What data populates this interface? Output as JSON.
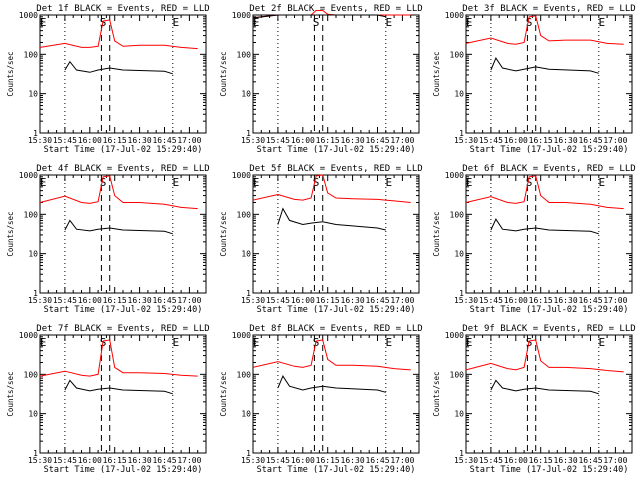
{
  "chart_data": {
    "type": "line",
    "grid": false,
    "xlabel": "Start Time (17-Jul-02 15:29:40)",
    "ylabel": "Counts/sec",
    "yscale": "log",
    "ylim": [
      1,
      1000
    ],
    "xlim_minutes": [
      0,
      100
    ],
    "xtick_labels": [
      "15:30",
      "15:45",
      "16:00",
      "16:15",
      "16:30",
      "16:45",
      "17:00"
    ],
    "ytick_labels": [
      "1",
      "10",
      "100",
      "1000"
    ],
    "colors": {
      "events": "#000000",
      "lld": "#ff0000"
    },
    "markers": {
      "dotted": [
        "15:45",
        "16:50"
      ],
      "dashed": [
        "16:07",
        "16:12"
      ],
      "flags": [
        {
          "time": "15:30",
          "label": "E"
        },
        {
          "time": "16:08",
          "label": "S"
        },
        {
          "time": "16:50",
          "label": "E"
        }
      ]
    },
    "panels": [
      {
        "title": "Det 1f BLACK = Events, RED = LLD",
        "series": [
          {
            "name": "RED = LLD",
            "points": [
              [
                "15:30",
                150
              ],
              [
                "15:45",
                190
              ],
              [
                "15:55",
                150
              ],
              [
                "16:00",
                150
              ],
              [
                "16:05",
                160
              ],
              [
                "16:08",
                700
              ],
              [
                "16:12",
                750
              ],
              [
                "16:15",
                220
              ],
              [
                "16:20",
                160
              ],
              [
                "16:30",
                170
              ],
              [
                "16:45",
                170
              ],
              [
                "16:55",
                150
              ],
              [
                "17:05",
                140
              ]
            ]
          },
          {
            "name": "BLACK = Events",
            "points": [
              [
                "15:45",
                40
              ],
              [
                "15:48",
                65
              ],
              [
                "15:52",
                40
              ],
              [
                "16:00",
                35
              ],
              [
                "16:05",
                40
              ],
              [
                "16:12",
                45
              ],
              [
                "16:20",
                40
              ],
              [
                "16:45",
                37
              ],
              [
                "16:50",
                32
              ]
            ]
          }
        ]
      },
      {
        "title": "Det 2f BLACK = Events, RED = LLD",
        "series": [
          {
            "name": "RED = LLD",
            "points": [
              [
                "15:30",
                850
              ],
              [
                "15:45",
                1000
              ],
              [
                "16:00",
                1000
              ],
              [
                "16:05",
                1000
              ],
              [
                "16:08",
                1300
              ],
              [
                "16:12",
                1300
              ],
              [
                "16:15",
                1050
              ],
              [
                "16:20",
                1000
              ],
              [
                "16:45",
                1000
              ],
              [
                "17:05",
                1000
              ]
            ]
          },
          {
            "name": "BLACK = Events",
            "points": [
              [
                "15:30",
                850
              ],
              [
                "15:45",
                1000
              ],
              [
                "16:00",
                1000
              ],
              [
                "16:15",
                1000
              ],
              [
                "16:45",
                1000
              ],
              [
                "16:50",
                900
              ]
            ]
          }
        ]
      },
      {
        "title": "Det 3f BLACK = Events, RED = LLD",
        "series": [
          {
            "name": "RED = LLD",
            "points": [
              [
                "15:30",
                190
              ],
              [
                "15:45",
                260
              ],
              [
                "15:55",
                190
              ],
              [
                "16:00",
                180
              ],
              [
                "16:05",
                200
              ],
              [
                "16:08",
                900
              ],
              [
                "16:12",
                950
              ],
              [
                "16:15",
                300
              ],
              [
                "16:20",
                220
              ],
              [
                "16:30",
                230
              ],
              [
                "16:45",
                230
              ],
              [
                "16:55",
                190
              ],
              [
                "17:05",
                180
              ]
            ]
          },
          {
            "name": "BLACK = Events",
            "points": [
              [
                "15:45",
                40
              ],
              [
                "15:48",
                80
              ],
              [
                "15:52",
                45
              ],
              [
                "16:00",
                38
              ],
              [
                "16:05",
                42
              ],
              [
                "16:12",
                48
              ],
              [
                "16:20",
                42
              ],
              [
                "16:45",
                38
              ],
              [
                "16:50",
                33
              ]
            ]
          }
        ]
      },
      {
        "title": "Det 4f BLACK = Events, RED = LLD",
        "series": [
          {
            "name": "RED = LLD",
            "points": [
              [
                "15:30",
                200
              ],
              [
                "15:45",
                290
              ],
              [
                "15:55",
                200
              ],
              [
                "16:00",
                190
              ],
              [
                "16:05",
                210
              ],
              [
                "16:08",
                900
              ],
              [
                "16:12",
                950
              ],
              [
                "16:15",
                300
              ],
              [
                "16:20",
                200
              ],
              [
                "16:30",
                200
              ],
              [
                "16:45",
                180
              ],
              [
                "16:55",
                150
              ],
              [
                "17:05",
                140
              ]
            ]
          },
          {
            "name": "BLACK = Events",
            "points": [
              [
                "15:45",
                40
              ],
              [
                "15:48",
                70
              ],
              [
                "15:52",
                42
              ],
              [
                "16:00",
                38
              ],
              [
                "16:05",
                42
              ],
              [
                "16:12",
                45
              ],
              [
                "16:20",
                40
              ],
              [
                "16:45",
                37
              ],
              [
                "16:50",
                32
              ]
            ]
          }
        ]
      },
      {
        "title": "Det 5f BLACK = Events, RED = LLD",
        "series": [
          {
            "name": "RED = LLD",
            "points": [
              [
                "15:30",
                230
              ],
              [
                "15:45",
                320
              ],
              [
                "15:55",
                240
              ],
              [
                "16:00",
                230
              ],
              [
                "16:05",
                260
              ],
              [
                "16:08",
                950
              ],
              [
                "16:12",
                1000
              ],
              [
                "16:15",
                350
              ],
              [
                "16:20",
                260
              ],
              [
                "16:30",
                250
              ],
              [
                "16:45",
                240
              ],
              [
                "16:55",
                220
              ],
              [
                "17:05",
                200
              ]
            ]
          },
          {
            "name": "BLACK = Events",
            "points": [
              [
                "15:45",
                55
              ],
              [
                "15:48",
                140
              ],
              [
                "15:52",
                70
              ],
              [
                "16:00",
                55
              ],
              [
                "16:05",
                60
              ],
              [
                "16:12",
                65
              ],
              [
                "16:20",
                55
              ],
              [
                "16:45",
                45
              ],
              [
                "16:50",
                40
              ]
            ]
          }
        ]
      },
      {
        "title": "Det 6f BLACK = Events, RED = LLD",
        "series": [
          {
            "name": "RED = LLD",
            "points": [
              [
                "15:30",
                200
              ],
              [
                "15:45",
                280
              ],
              [
                "15:55",
                200
              ],
              [
                "16:00",
                190
              ],
              [
                "16:05",
                210
              ],
              [
                "16:08",
                900
              ],
              [
                "16:12",
                950
              ],
              [
                "16:15",
                300
              ],
              [
                "16:20",
                200
              ],
              [
                "16:30",
                200
              ],
              [
                "16:45",
                180
              ],
              [
                "16:55",
                150
              ],
              [
                "17:05",
                140
              ]
            ]
          },
          {
            "name": "BLACK = Events",
            "points": [
              [
                "15:45",
                40
              ],
              [
                "15:48",
                75
              ],
              [
                "15:52",
                42
              ],
              [
                "16:00",
                38
              ],
              [
                "16:05",
                42
              ],
              [
                "16:12",
                45
              ],
              [
                "16:20",
                40
              ],
              [
                "16:45",
                37
              ],
              [
                "16:50",
                32
              ]
            ]
          }
        ]
      },
      {
        "title": "Det 7f BLACK = Events, RED = LLD",
        "series": [
          {
            "name": "RED = LLD",
            "points": [
              [
                "15:30",
                90
              ],
              [
                "15:45",
                120
              ],
              [
                "15:55",
                95
              ],
              [
                "16:00",
                90
              ],
              [
                "16:05",
                100
              ],
              [
                "16:08",
                700
              ],
              [
                "16:12",
                750
              ],
              [
                "16:15",
                150
              ],
              [
                "16:20",
                110
              ],
              [
                "16:30",
                110
              ],
              [
                "16:45",
                105
              ],
              [
                "16:55",
                95
              ],
              [
                "17:05",
                90
              ]
            ]
          },
          {
            "name": "BLACK = Events",
            "points": [
              [
                "15:45",
                40
              ],
              [
                "15:48",
                70
              ],
              [
                "15:52",
                45
              ],
              [
                "16:00",
                38
              ],
              [
                "16:05",
                42
              ],
              [
                "16:12",
                45
              ],
              [
                "16:20",
                40
              ],
              [
                "16:45",
                37
              ],
              [
                "16:50",
                32
              ]
            ]
          }
        ]
      },
      {
        "title": "Det 8f BLACK = Events, RED = LLD",
        "series": [
          {
            "name": "RED = LLD",
            "points": [
              [
                "15:30",
                150
              ],
              [
                "15:45",
                210
              ],
              [
                "15:55",
                160
              ],
              [
                "16:00",
                150
              ],
              [
                "16:05",
                170
              ],
              [
                "16:08",
                700
              ],
              [
                "16:12",
                750
              ],
              [
                "16:15",
                240
              ],
              [
                "16:20",
                170
              ],
              [
                "16:30",
                170
              ],
              [
                "16:45",
                160
              ],
              [
                "16:55",
                140
              ],
              [
                "17:05",
                130
              ]
            ]
          },
          {
            "name": "BLACK = Events",
            "points": [
              [
                "15:45",
                45
              ],
              [
                "15:48",
                90
              ],
              [
                "15:52",
                50
              ],
              [
                "16:00",
                40
              ],
              [
                "16:05",
                45
              ],
              [
                "16:12",
                50
              ],
              [
                "16:20",
                45
              ],
              [
                "16:45",
                40
              ],
              [
                "16:50",
                35
              ]
            ]
          }
        ]
      },
      {
        "title": "Det 9f BLACK = Events, RED = LLD",
        "series": [
          {
            "name": "RED = LLD",
            "points": [
              [
                "15:30",
                130
              ],
              [
                "15:45",
                190
              ],
              [
                "15:55",
                140
              ],
              [
                "16:00",
                130
              ],
              [
                "16:05",
                150
              ],
              [
                "16:08",
                700
              ],
              [
                "16:12",
                750
              ],
              [
                "16:15",
                220
              ],
              [
                "16:20",
                150
              ],
              [
                "16:30",
                150
              ],
              [
                "16:45",
                140
              ],
              [
                "16:55",
                125
              ],
              [
                "17:05",
                115
              ]
            ]
          },
          {
            "name": "BLACK = Events",
            "points": [
              [
                "15:45",
                40
              ],
              [
                "15:48",
                70
              ],
              [
                "15:52",
                45
              ],
              [
                "16:00",
                38
              ],
              [
                "16:05",
                42
              ],
              [
                "16:12",
                45
              ],
              [
                "16:20",
                40
              ],
              [
                "16:45",
                37
              ],
              [
                "16:50",
                32
              ]
            ]
          }
        ]
      }
    ]
  }
}
